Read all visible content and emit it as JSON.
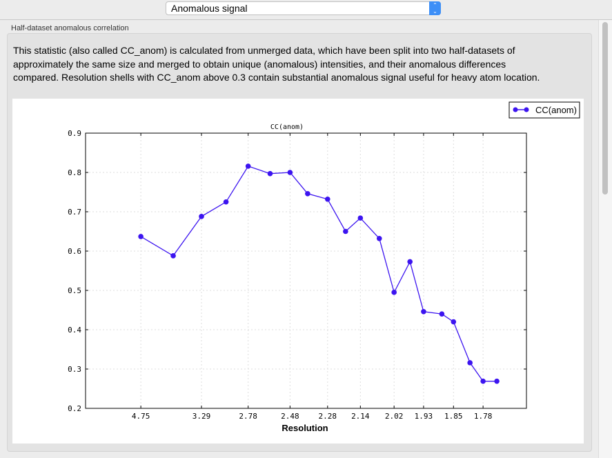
{
  "dropdown": {
    "selected": "Anomalous signal"
  },
  "group": {
    "title": "Half-dataset anomalous correlation",
    "description": "This statistic (also called CC_anom) is calculated from unmerged data, which have been split into two half-datasets of approximately the same size and merged to obtain unique (anomalous) intensities, and their anomalous differences compared.  Resolution shells with CC_anom above 0.3 contain substantial anomalous signal useful for heavy atom location."
  },
  "chart_data": {
    "type": "line",
    "title": "CC(anom)",
    "xlabel": "Resolution",
    "ylabel": "",
    "x_scale": "reciprocal-squared (1/d^2)",
    "ylim": [
      0.2,
      0.9
    ],
    "yticks": [
      "0.9",
      "0.8",
      "0.7",
      "0.6",
      "0.5",
      "0.4",
      "0.3",
      "0.2"
    ],
    "xticks": [
      "4.75",
      "3.29",
      "2.78",
      "2.48",
      "2.28",
      "2.14",
      "2.02",
      "1.93",
      "1.85",
      "1.78"
    ],
    "grid": true,
    "legend_position": "top-right",
    "series": [
      {
        "name": "CC(anom)",
        "color": "#3c14f0",
        "x": [
          4.75,
          3.78,
          3.29,
          2.99,
          2.78,
          2.61,
          2.48,
          2.38,
          2.28,
          2.2,
          2.14,
          2.07,
          2.02,
          1.97,
          1.93,
          1.88,
          1.85,
          1.81,
          1.78,
          1.75
        ],
        "y": [
          0.637,
          0.588,
          0.688,
          0.725,
          0.816,
          0.797,
          0.8,
          0.746,
          0.732,
          0.65,
          0.684,
          0.632,
          0.495,
          0.573,
          0.446,
          0.44,
          0.42,
          0.316,
          0.269,
          0.269
        ]
      }
    ]
  }
}
